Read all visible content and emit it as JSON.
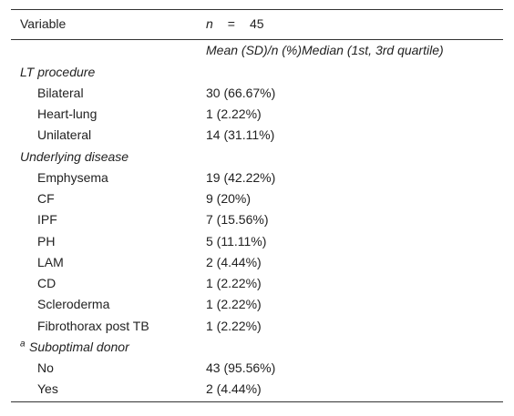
{
  "header": {
    "variable": "Variable",
    "n_symbol": "n",
    "equals": "=",
    "n_value": "45"
  },
  "subheader": "Mean (SD)/n (%)Median (1st, 3rd quartile)",
  "sections": [
    {
      "title": "LT procedure",
      "rows": [
        [
          "Bilateral",
          "30 (66.67%)"
        ],
        [
          "Heart-lung",
          "1 (2.22%)"
        ],
        [
          "Unilateral",
          "14 (31.11%)"
        ]
      ]
    },
    {
      "title": "Underlying disease",
      "rows": [
        [
          "Emphysema",
          "19 (42.22%)"
        ],
        [
          "CF",
          "9 (20%)"
        ],
        [
          "IPF",
          "7 (15.56%)"
        ],
        [
          "PH",
          "5 (11.11%)"
        ],
        [
          "LAM",
          "2 (4.44%)"
        ],
        [
          "CD",
          "1 (2.22%)"
        ],
        [
          "Scleroderma",
          "1 (2.22%)"
        ],
        [
          "Fibrothorax post TB",
          "1 (2.22%)"
        ]
      ]
    },
    {
      "title": "Suboptimal donor",
      "title_sup": "a",
      "rows": [
        [
          "No",
          "43 (95.56%)"
        ],
        [
          "Yes",
          "2 (4.44%)"
        ]
      ]
    }
  ]
}
